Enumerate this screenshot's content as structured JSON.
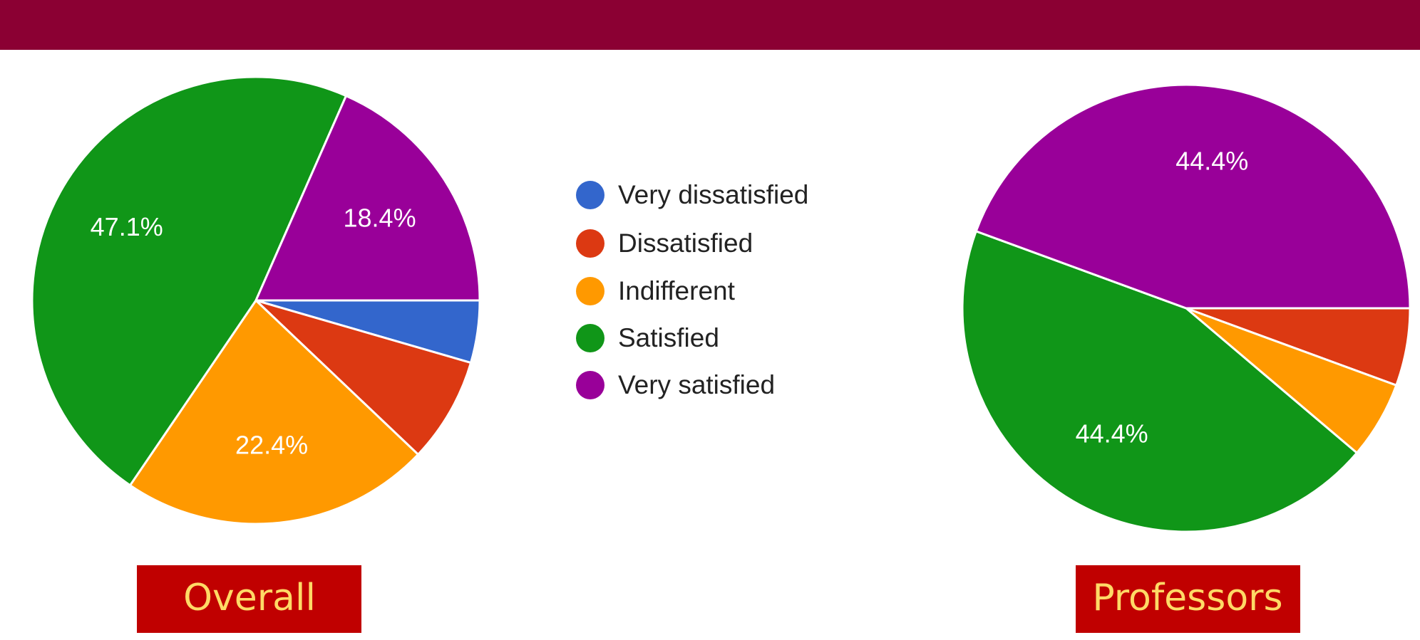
{
  "legend": {
    "labels": [
      "Very dissatisfied",
      "Dissatisfied",
      "Indifferent",
      "Satisfied",
      "Very satisfied"
    ],
    "colors": [
      "#3366cc",
      "#dc3912",
      "#ff9900",
      "#109618",
      "#990099"
    ]
  },
  "chart_data": [
    {
      "type": "pie",
      "title": "Overall",
      "values": [
        4.5,
        7.6,
        22.4,
        47.1,
        18.4
      ],
      "value_labels": [
        null,
        null,
        "22.4%",
        "47.1%",
        "18.4%"
      ]
    },
    {
      "type": "pie",
      "title": "Professors",
      "values": [
        0,
        5.6,
        5.6,
        44.4,
        44.4
      ],
      "value_labels": [
        null,
        null,
        null,
        "44.4%",
        "44.4%"
      ]
    }
  ]
}
